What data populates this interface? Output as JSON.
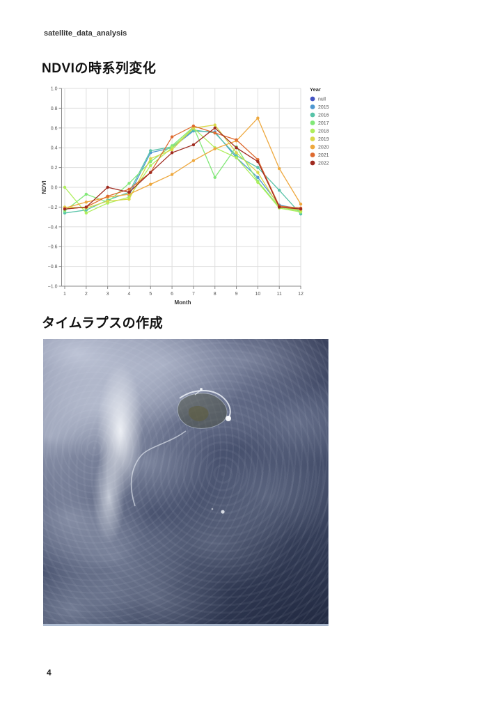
{
  "page": {
    "header": "satellite_data_analysis",
    "section1_title": "NDVIの時系列変化",
    "section2_title": "タイムラプスの作成",
    "page_number": "4"
  },
  "chart_data": {
    "type": "line",
    "title": "",
    "xlabel": "Month",
    "ylabel": "NDVI",
    "xlim": [
      1,
      12
    ],
    "ylim": [
      -1.0,
      1.0
    ],
    "grid": true,
    "legend_title": "Year",
    "legend_position": "right",
    "grid_color": "#dddddd",
    "axis_color": "#888888",
    "tick_label_color": "#555555",
    "axis_title_color": "#333333",
    "x_ticks": [
      1,
      2,
      3,
      4,
      5,
      6,
      7,
      8,
      9,
      10,
      11,
      12
    ],
    "y_ticks": [
      {
        "v": 1.0,
        "label": "1.0"
      },
      {
        "v": 0.8,
        "label": "0.8"
      },
      {
        "v": 0.6,
        "label": "0.6"
      },
      {
        "v": 0.4,
        "label": "0.4"
      },
      {
        "v": 0.2,
        "label": "0.2"
      },
      {
        "v": 0.0,
        "label": "0.0"
      },
      {
        "v": -0.2,
        "label": "−0.2"
      },
      {
        "v": -0.4,
        "label": "−0.4"
      },
      {
        "v": -0.6,
        "label": "−0.6"
      },
      {
        "v": -0.8,
        "label": "−0.8"
      },
      {
        "v": -1.0,
        "label": "−1.0"
      }
    ],
    "x": [
      1,
      2,
      3,
      4,
      5,
      6,
      7,
      8,
      9,
      10,
      11,
      12
    ],
    "series": [
      {
        "name": "null",
        "color": "#4453c2",
        "values": [
          null,
          null,
          null,
          null,
          null,
          null,
          null,
          null,
          null,
          null,
          null,
          null
        ]
      },
      {
        "name": "2015",
        "color": "#4e97d1",
        "values": [
          null,
          null,
          null,
          -0.08,
          0.35,
          0.4,
          0.57,
          0.56,
          0.3,
          0.1,
          -0.18,
          -0.22
        ]
      },
      {
        "name": "2016",
        "color": "#57c3a8",
        "values": [
          -0.26,
          -0.23,
          -0.13,
          -0.05,
          0.37,
          0.41,
          0.58,
          0.55,
          0.32,
          0.2,
          -0.03,
          -0.27
        ]
      },
      {
        "name": "2017",
        "color": "#82e878",
        "values": [
          -0.24,
          -0.07,
          -0.15,
          0.04,
          0.26,
          0.42,
          0.61,
          0.1,
          0.41,
          0.06,
          -0.2,
          -0.24
        ]
      },
      {
        "name": "2018",
        "color": "#aeee5c",
        "values": [
          0.0,
          -0.26,
          -0.16,
          -0.1,
          0.22,
          0.4,
          0.6,
          0.4,
          0.3,
          0.05,
          -0.21,
          -0.25
        ]
      },
      {
        "name": "2019",
        "color": "#d9d849",
        "values": [
          -0.2,
          -0.21,
          -0.14,
          -0.12,
          0.29,
          0.38,
          0.6,
          0.63,
          0.35,
          0.15,
          -0.2,
          -0.23
        ]
      },
      {
        "name": "2020",
        "color": "#eea83e",
        "values": [
          -0.21,
          -0.15,
          -0.1,
          -0.07,
          0.03,
          0.13,
          0.27,
          0.39,
          0.47,
          0.7,
          0.19,
          -0.17
        ]
      },
      {
        "name": "2021",
        "color": "#de6a2f",
        "values": [
          -0.22,
          -0.2,
          -0.09,
          -0.02,
          0.15,
          0.51,
          0.62,
          0.55,
          0.48,
          0.28,
          -0.19,
          -0.21
        ]
      },
      {
        "name": "2022",
        "color": "#9f2a1f",
        "values": [
          -0.22,
          -0.2,
          0.0,
          -0.05,
          0.15,
          0.35,
          0.43,
          0.6,
          0.4,
          0.26,
          -0.2,
          -0.22
        ]
      }
    ]
  }
}
